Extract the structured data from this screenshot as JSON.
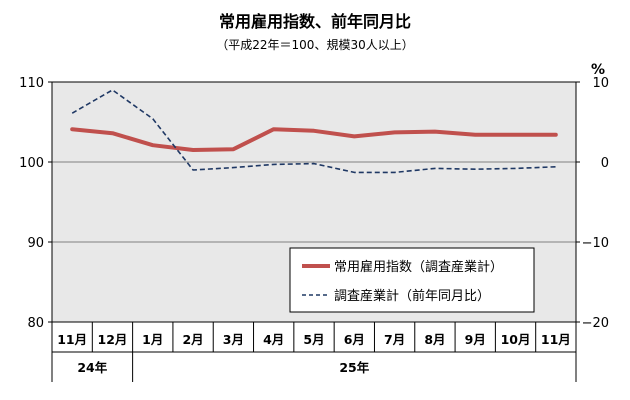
{
  "chart_data": {
    "type": "line",
    "title": "常用雇用指数、前年同月比",
    "subtitle": "（平成22年＝100、規模30人以上）",
    "categories": [
      "11月",
      "12月",
      "1月",
      "2月",
      "3月",
      "4月",
      "5月",
      "6月",
      "7月",
      "8月",
      "9月",
      "10月",
      "11月"
    ],
    "year_groups": [
      {
        "label": "24年",
        "months": [
          "11月",
          "12月"
        ]
      },
      {
        "label": "25年",
        "months": [
          "1月",
          "2月",
          "3月",
          "4月",
          "5月",
          "6月",
          "7月",
          "8月",
          "9月",
          "10月",
          "11月"
        ]
      }
    ],
    "y_left": {
      "min": 80,
      "max": 110,
      "ticks": [
        80,
        90,
        100,
        110
      ]
    },
    "y_right": {
      "unit": "%",
      "min": -20,
      "max": 10,
      "ticks": [
        -20,
        -10,
        0,
        10
      ],
      "tick_labels": [
        "−20",
        "−10",
        "0",
        "10"
      ]
    },
    "series": [
      {
        "name": "常用雇用指数（調査産業計）",
        "axis": "left",
        "style": "solid",
        "color": "#c0504d",
        "values": [
          104.1,
          103.6,
          102.1,
          101.5,
          101.6,
          104.1,
          103.9,
          103.2,
          103.7,
          103.8,
          103.4,
          103.4,
          103.4
        ]
      },
      {
        "name": "調査産業計（前年同月比）",
        "axis": "right",
        "style": "dashed",
        "color": "#1f3864",
        "values": [
          6.1,
          9.0,
          5.4,
          -1.0,
          -0.7,
          -0.3,
          -0.2,
          -1.3,
          -1.3,
          -0.8,
          -0.9,
          -0.8,
          -0.6
        ]
      }
    ],
    "grid": "horizontal",
    "legend_position": "bottom-right",
    "plot_background": "#e8e8e8"
  }
}
